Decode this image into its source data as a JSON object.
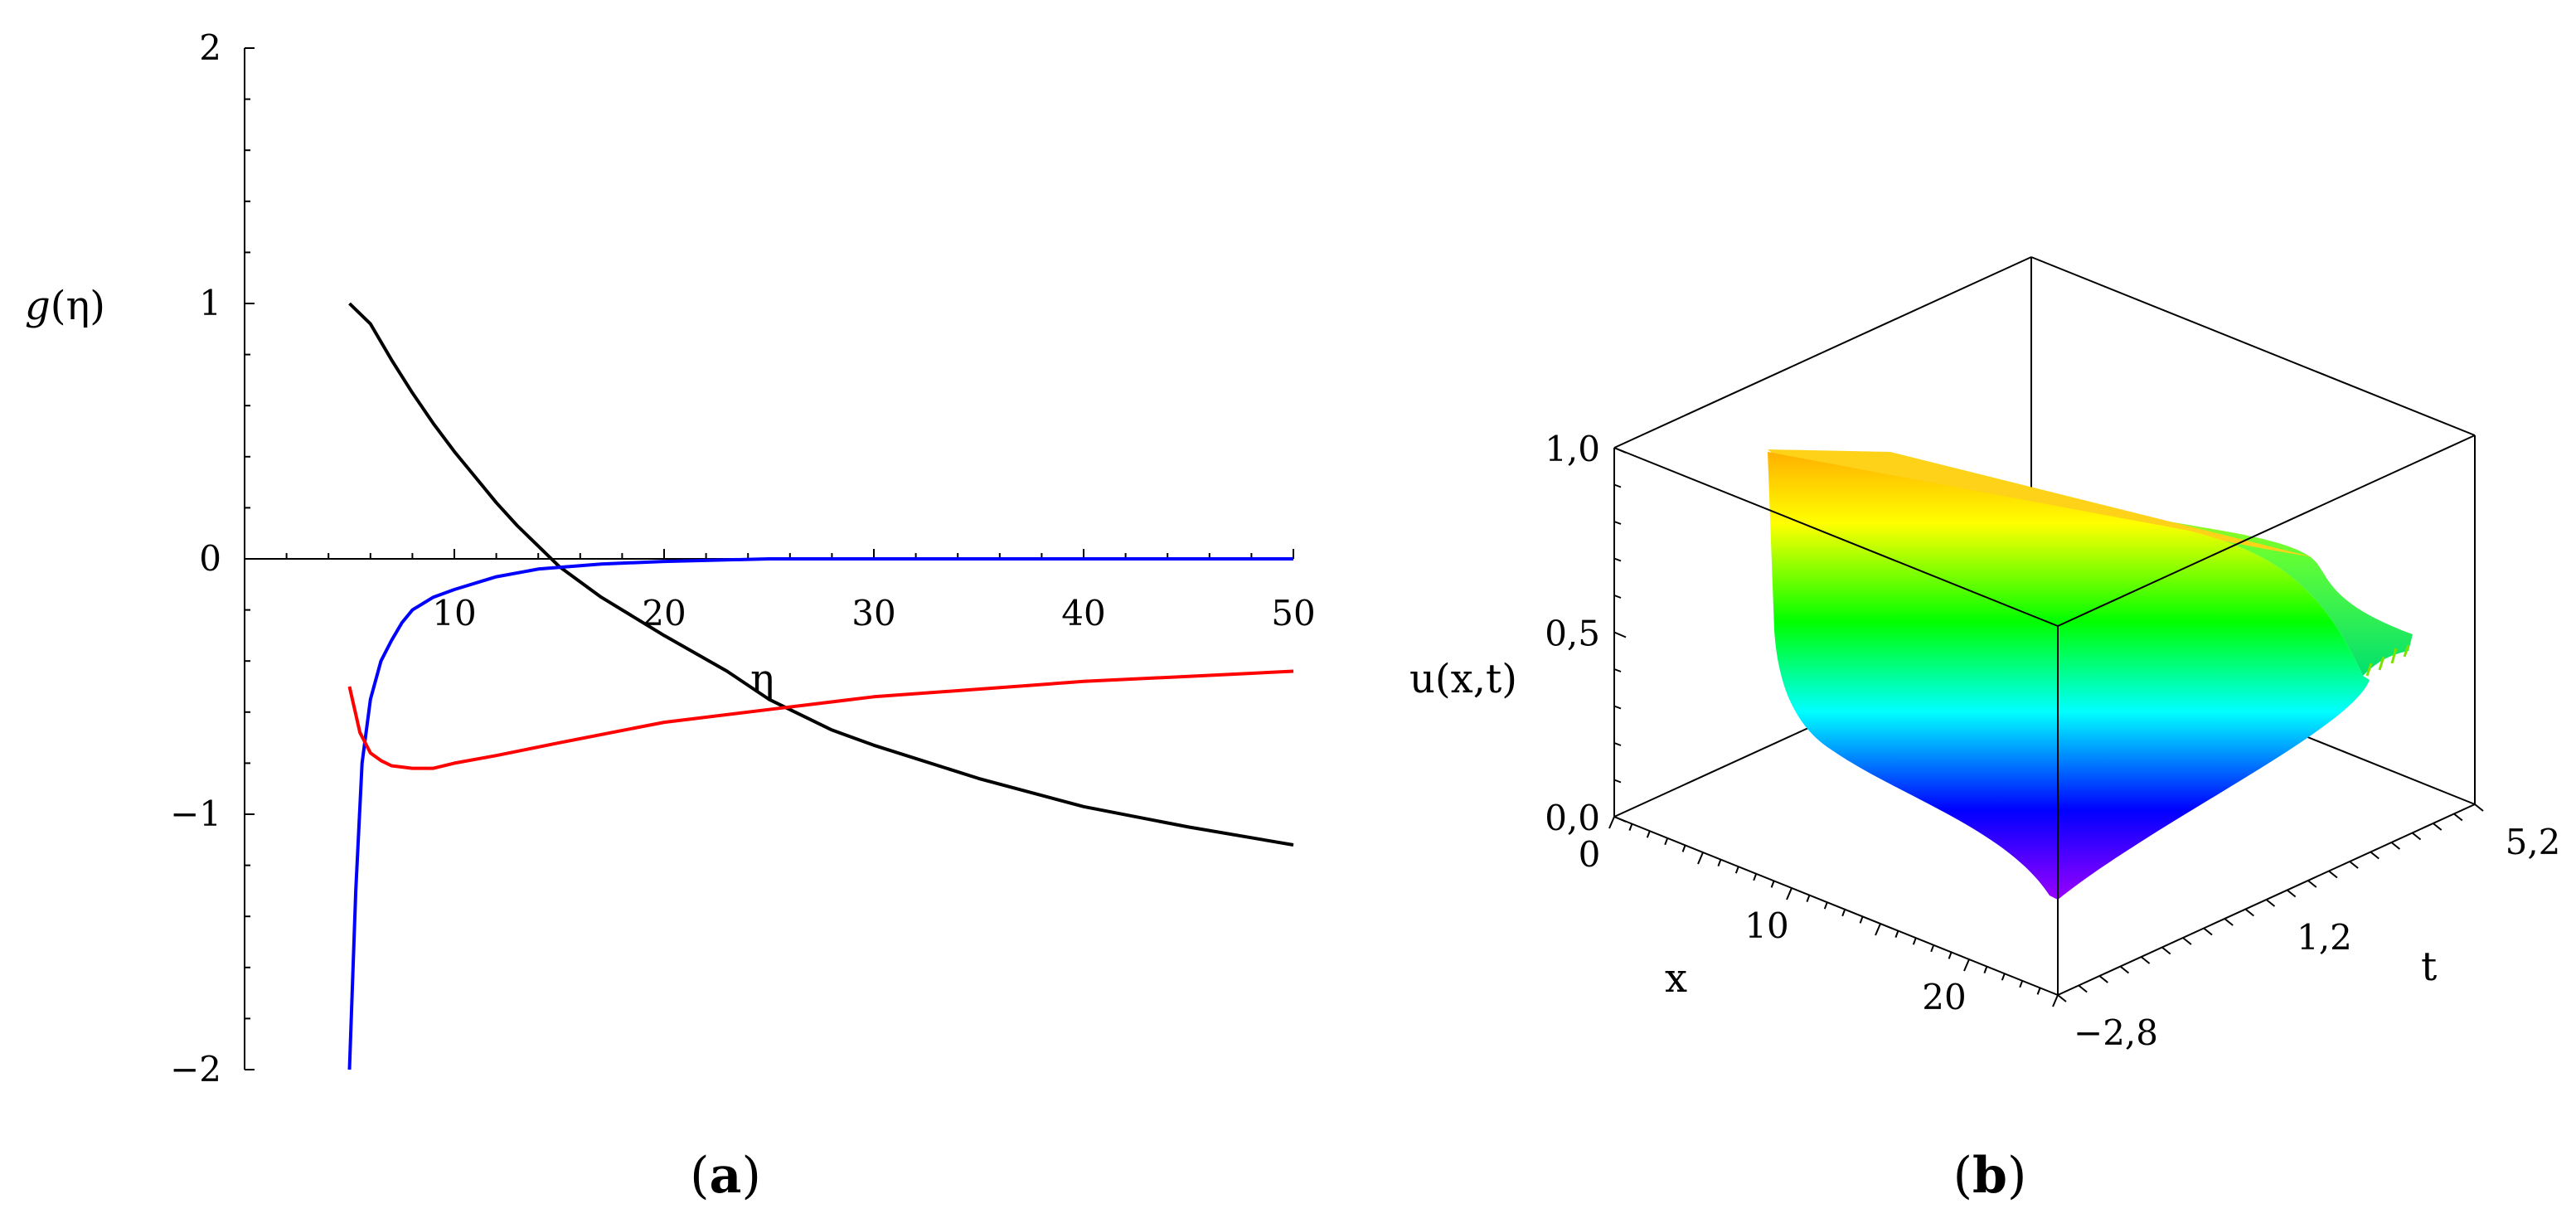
{
  "panels": {
    "a": {
      "open": "(",
      "letter": "a",
      "close": ")"
    },
    "b": {
      "open": "(",
      "letter": "b",
      "close": ")"
    }
  },
  "chart_data": [
    {
      "type": "line",
      "xlabel": "η",
      "ylabel": "g(η)",
      "xlim": [
        0,
        50
      ],
      "ylim": [
        -2,
        2
      ],
      "xticks": [
        10,
        20,
        30,
        40,
        50
      ],
      "yticks": [
        -2,
        -1,
        0,
        1,
        2
      ],
      "xtick_labels": [
        "10",
        "20",
        "30",
        "40",
        "50"
      ],
      "ytick_labels": [
        "−2",
        "−1",
        "0",
        "1",
        "2"
      ],
      "grid": false,
      "legend": "none",
      "series": [
        {
          "color": "#000000",
          "x": [
            5,
            6,
            7,
            8,
            9,
            10,
            11,
            12,
            13,
            14,
            15,
            17,
            20,
            23,
            25,
            28,
            30,
            35,
            40,
            45,
            50
          ],
          "y": [
            1.0,
            0.92,
            0.78,
            0.65,
            0.53,
            0.42,
            0.32,
            0.22,
            0.13,
            0.05,
            -0.03,
            -0.15,
            -0.3,
            -0.44,
            -0.55,
            -0.67,
            -0.73,
            -0.86,
            -0.97,
            -1.05,
            -1.12
          ]
        },
        {
          "color": "#0000ff",
          "x": [
            5,
            5.3,
            5.6,
            6,
            6.5,
            7,
            7.5,
            8,
            9,
            10,
            12,
            14,
            17,
            20,
            25,
            30,
            40,
            50
          ],
          "y": [
            -2.0,
            -1.3,
            -0.8,
            -0.55,
            -0.4,
            -0.32,
            -0.25,
            -0.2,
            -0.15,
            -0.12,
            -0.07,
            -0.04,
            -0.02,
            -0.01,
            0.0,
            0.0,
            0.0,
            0.0
          ]
        },
        {
          "color": "#ff0000",
          "x": [
            5,
            5.5,
            6,
            6.5,
            7,
            8,
            9,
            10,
            12,
            15,
            20,
            25,
            30,
            35,
            40,
            45,
            50
          ],
          "y": [
            -0.5,
            -0.68,
            -0.76,
            -0.79,
            -0.81,
            -0.82,
            -0.82,
            -0.8,
            -0.77,
            -0.72,
            -0.64,
            -0.59,
            -0.54,
            -0.51,
            -0.48,
            -0.46,
            -0.44
          ]
        }
      ]
    },
    {
      "type": "surface",
      "xlabel": "x",
      "ylabel": "t",
      "zlabel": "u(x,t)",
      "xticks": [
        0,
        10,
        20
      ],
      "tticks": [
        -2.8,
        1.2,
        5.2
      ],
      "zticks": [
        0.0,
        0.5,
        1.0
      ],
      "xtick_labels": [
        "0",
        "10",
        "20"
      ],
      "ttick_labels": [
        "−2,8",
        "1,2",
        "5,2"
      ],
      "ztick_labels": [
        "0,0",
        "0,5",
        "1,0"
      ],
      "xlim": [
        0,
        25
      ],
      "tlim": [
        -2.8,
        5.2
      ],
      "zlim": [
        0,
        1
      ],
      "colormap": [
        "#9a00ff",
        "#0000ff",
        "#00ffff",
        "#00ff00",
        "#ffff00",
        "#ffb000"
      ]
    }
  ]
}
